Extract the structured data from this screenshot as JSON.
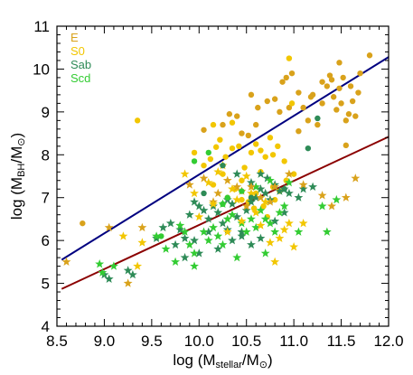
{
  "chart_data": {
    "type": "scatter",
    "xlabel": "log (M_stellar/M_⊙)",
    "ylabel": "log (M_BH/M_⊙)",
    "xlim": [
      8.5,
      12.0
    ],
    "ylim": [
      4.0,
      11.0
    ],
    "x_ticks": [
      "8.5",
      "9.0",
      "9.5",
      "10.0",
      "10.5",
      "11.0",
      "11.5",
      "12.0"
    ],
    "y_ticks": [
      "4",
      "5",
      "6",
      "7",
      "8",
      "9",
      "10",
      "11"
    ],
    "legend_position": "top-left",
    "legend": [
      {
        "label": "E",
        "color": "#d9a21b"
      },
      {
        "label": "S0",
        "color": "#f2c600"
      },
      {
        "label": "Sab",
        "color": "#2e8b57"
      },
      {
        "label": "Scd",
        "color": "#33cc33"
      }
    ],
    "lines": [
      {
        "color": "#000080",
        "x": [
          8.55,
          12.0
        ],
        "y": [
          5.55,
          10.28
        ]
      },
      {
        "color": "#8b0000",
        "x": [
          8.55,
          12.0
        ],
        "y": [
          4.87,
          8.42
        ]
      }
    ],
    "series": [
      {
        "name": "E",
        "marker": "circle",
        "color": "#d9a21b",
        "points": [
          [
            8.77,
            6.4
          ],
          [
            10.05,
            8.58
          ],
          [
            10.25,
            8.7
          ],
          [
            10.32,
            8.95
          ],
          [
            10.4,
            8.9
          ],
          [
            10.45,
            8.5
          ],
          [
            10.52,
            8.45
          ],
          [
            10.55,
            9.4
          ],
          [
            10.62,
            9.1
          ],
          [
            10.72,
            9.25
          ],
          [
            10.8,
            9.3
          ],
          [
            10.88,
            9.7
          ],
          [
            10.92,
            9.8
          ],
          [
            10.98,
            9.9
          ],
          [
            11.05,
            9.45
          ],
          [
            11.1,
            9.1
          ],
          [
            11.18,
            9.35
          ],
          [
            11.25,
            8.7
          ],
          [
            11.3,
            9.7
          ],
          [
            11.35,
            9.6
          ],
          [
            11.4,
            9.75
          ],
          [
            11.45,
            9.05
          ],
          [
            11.48,
            10.15
          ],
          [
            11.52,
            9.8
          ],
          [
            11.55,
            8.8
          ],
          [
            11.42,
            9.35
          ],
          [
            11.6,
            9.6
          ],
          [
            11.62,
            9.25
          ],
          [
            11.68,
            9.45
          ],
          [
            11.8,
            10.32
          ],
          [
            11.38,
            9.85
          ],
          [
            11.5,
            9.2
          ],
          [
            11.58,
            8.95
          ],
          [
            11.2,
            9.4
          ],
          [
            11.15,
            8.8
          ],
          [
            11.05,
            8.55
          ],
          [
            10.95,
            9.1
          ],
          [
            11.65,
            8.9
          ],
          [
            11.55,
            8.22
          ],
          [
            11.7,
            9.9
          ],
          [
            11.48,
            9.55
          ],
          [
            11.3,
            9.2
          ],
          [
            10.85,
            9.0
          ],
          [
            10.6,
            8.7
          ]
        ]
      },
      {
        "name": "S0",
        "marker": "circle",
        "color": "#f2c600",
        "points": [
          [
            9.35,
            8.8
          ],
          [
            9.95,
            8.05
          ],
          [
            10.05,
            7.75
          ],
          [
            10.15,
            8.7
          ],
          [
            10.18,
            8.18
          ],
          [
            10.22,
            8.35
          ],
          [
            10.28,
            7.95
          ],
          [
            10.35,
            8.15
          ],
          [
            10.42,
            8.2
          ],
          [
            10.48,
            7.7
          ],
          [
            10.55,
            8.05
          ],
          [
            10.6,
            8.25
          ],
          [
            10.65,
            8.1
          ],
          [
            10.7,
            7.95
          ],
          [
            10.75,
            8.4
          ],
          [
            10.78,
            8.0
          ],
          [
            10.83,
            8.2
          ],
          [
            10.9,
            7.85
          ],
          [
            10.95,
            10.25
          ],
          [
            10.98,
            9.2
          ],
          [
            10.35,
            8.75
          ],
          [
            10.12,
            7.9
          ],
          [
            10.6,
            7.1
          ],
          [
            10.78,
            7.25
          ],
          [
            10.52,
            6.9
          ],
          [
            10.85,
            7.15
          ],
          [
            10.38,
            7.2
          ],
          [
            10.45,
            6.95
          ],
          [
            10.68,
            6.8
          ],
          [
            10.72,
            6.55
          ],
          [
            10.58,
            6.75
          ],
          [
            10.3,
            7.0
          ],
          [
            10.15,
            7.3
          ],
          [
            11.0,
            7.55
          ],
          [
            10.65,
            7.6
          ],
          [
            10.92,
            7.4
          ],
          [
            10.25,
            7.55
          ],
          [
            10.45,
            7.4
          ],
          [
            10.8,
            6.95
          ]
        ]
      },
      {
        "name": "Sab",
        "marker": "star",
        "color": "#2e8b57",
        "points": [
          [
            9.25,
            5.3
          ],
          [
            9.3,
            5.2
          ],
          [
            9.55,
            6.05
          ],
          [
            9.62,
            6.3
          ],
          [
            9.7,
            6.4
          ],
          [
            9.8,
            6.25
          ],
          [
            9.85,
            6.05
          ],
          [
            9.9,
            6.6
          ],
          [
            9.95,
            6.9
          ],
          [
            10.0,
            6.8
          ],
          [
            10.05,
            6.7
          ],
          [
            10.1,
            6.5
          ],
          [
            10.15,
            6.8
          ],
          [
            10.2,
            6.65
          ],
          [
            10.25,
            6.4
          ],
          [
            10.3,
            6.25
          ],
          [
            10.35,
            6.85
          ],
          [
            10.4,
            6.55
          ],
          [
            10.45,
            6.2
          ],
          [
            10.5,
            6.7
          ],
          [
            10.55,
            6.9
          ],
          [
            10.6,
            7.0
          ],
          [
            10.65,
            7.2
          ],
          [
            10.7,
            7.1
          ],
          [
            10.75,
            6.95
          ],
          [
            10.8,
            7.3
          ],
          [
            10.85,
            7.15
          ],
          [
            10.9,
            7.2
          ],
          [
            10.95,
            7.1
          ],
          [
            11.05,
            7.0
          ],
          [
            11.1,
            7.2
          ],
          [
            10.45,
            6.1
          ],
          [
            10.35,
            6.0
          ],
          [
            9.75,
            5.9
          ],
          [
            10.2,
            5.8
          ],
          [
            10.55,
            5.9
          ],
          [
            9.85,
            5.6
          ],
          [
            10.65,
            6.05
          ],
          [
            10.0,
            5.7
          ],
          [
            10.8,
            6.45
          ],
          [
            10.3,
            6.95
          ],
          [
            10.72,
            7.45
          ],
          [
            10.55,
            7.35
          ],
          [
            10.65,
            7.55
          ],
          [
            10.4,
            7.55
          ],
          [
            10.9,
            6.65
          ],
          [
            11.2,
            7.25
          ],
          [
            9.95,
            6.0
          ],
          [
            10.1,
            6.2
          ],
          [
            9.0,
            5.2
          ],
          [
            9.05,
            5.1
          ]
        ]
      },
      {
        "name": "Scd",
        "marker": "star",
        "color": "#33cc33",
        "points": [
          [
            8.95,
            5.45
          ],
          [
            8.98,
            5.25
          ],
          [
            9.1,
            5.4
          ],
          [
            9.55,
            6.1
          ],
          [
            9.65,
            5.8
          ],
          [
            9.75,
            5.5
          ],
          [
            9.85,
            6.2
          ],
          [
            9.9,
            5.9
          ],
          [
            9.95,
            5.7
          ],
          [
            10.05,
            6.2
          ],
          [
            10.1,
            6.0
          ],
          [
            10.15,
            6.3
          ],
          [
            10.2,
            6.1
          ],
          [
            10.25,
            5.9
          ],
          [
            10.3,
            6.5
          ],
          [
            10.35,
            6.6
          ],
          [
            10.45,
            6.4
          ],
          [
            10.5,
            6.2
          ],
          [
            10.55,
            6.5
          ],
          [
            10.6,
            6.3
          ],
          [
            10.65,
            6.7
          ],
          [
            10.7,
            6.5
          ],
          [
            10.75,
            6.4
          ],
          [
            10.8,
            6.2
          ],
          [
            10.85,
            6.65
          ],
          [
            10.9,
            6.8
          ],
          [
            11.05,
            6.2
          ],
          [
            11.3,
            6.8
          ],
          [
            10.75,
            7.4
          ],
          [
            10.6,
            7.25
          ],
          [
            10.95,
            7.35
          ],
          [
            9.95,
            5.4
          ],
          [
            10.4,
            5.6
          ],
          [
            10.7,
            5.7
          ],
          [
            11.35,
            6.2
          ],
          [
            11.45,
            6.95
          ],
          [
            10.25,
            6.85
          ],
          [
            9.8,
            6.35
          ]
        ]
      },
      {
        "name": "E-star",
        "marker": "star",
        "color": "#d9a21b",
        "points": [
          [
            8.6,
            5.5
          ],
          [
            9.05,
            6.3
          ],
          [
            9.25,
            5.0
          ],
          [
            9.4,
            6.3
          ],
          [
            9.9,
            7.3
          ],
          [
            10.05,
            7.45
          ],
          [
            10.15,
            6.9
          ],
          [
            10.2,
            7.1
          ],
          [
            10.3,
            7.4
          ],
          [
            10.45,
            7.15
          ],
          [
            10.55,
            7.25
          ],
          [
            10.65,
            7.0
          ],
          [
            10.8,
            7.25
          ],
          [
            10.95,
            7.55
          ],
          [
            11.1,
            7.3
          ],
          [
            11.3,
            7.05
          ],
          [
            11.4,
            6.8
          ],
          [
            11.55,
            7.0
          ],
          [
            11.65,
            7.45
          ],
          [
            10.4,
            7.25
          ],
          [
            10.5,
            6.8
          ],
          [
            10.75,
            6.9
          ]
        ]
      },
      {
        "name": "S0-star",
        "marker": "star",
        "color": "#f2c600",
        "points": [
          [
            9.2,
            6.1
          ],
          [
            9.35,
            5.4
          ],
          [
            9.4,
            5.95
          ],
          [
            9.85,
            7.55
          ],
          [
            9.95,
            7.1
          ],
          [
            10.1,
            7.35
          ],
          [
            10.2,
            7.6
          ],
          [
            10.25,
            7.75
          ],
          [
            10.35,
            7.2
          ],
          [
            10.4,
            6.95
          ],
          [
            10.5,
            7.5
          ],
          [
            10.55,
            7.1
          ],
          [
            10.6,
            6.65
          ],
          [
            10.65,
            6.35
          ],
          [
            10.7,
            6.9
          ],
          [
            10.75,
            5.95
          ],
          [
            10.8,
            5.5
          ],
          [
            10.85,
            6.05
          ],
          [
            10.9,
            6.25
          ],
          [
            11.0,
            5.85
          ],
          [
            11.1,
            6.4
          ],
          [
            10.95,
            6.4
          ],
          [
            10.45,
            6.45
          ],
          [
            10.3,
            6.2
          ],
          [
            10.0,
            6.55
          ],
          [
            10.15,
            6.85
          ]
        ]
      },
      {
        "name": "Sab-circle",
        "marker": "circle",
        "color": "#2e8b57",
        "points": [
          [
            10.25,
            7.75
          ],
          [
            10.55,
            7.0
          ],
          [
            10.9,
            7.2
          ],
          [
            11.15,
            8.15
          ],
          [
            11.25,
            8.85
          ],
          [
            10.05,
            7.1
          ]
        ]
      },
      {
        "name": "Scd-circle",
        "marker": "circle",
        "color": "#33cc33",
        "points": [
          [
            9.95,
            7.85
          ],
          [
            10.1,
            8.05
          ],
          [
            10.45,
            7.15
          ],
          [
            10.3,
            7.0
          ],
          [
            9.6,
            6.1
          ],
          [
            10.25,
            6.85
          ]
        ]
      }
    ]
  }
}
